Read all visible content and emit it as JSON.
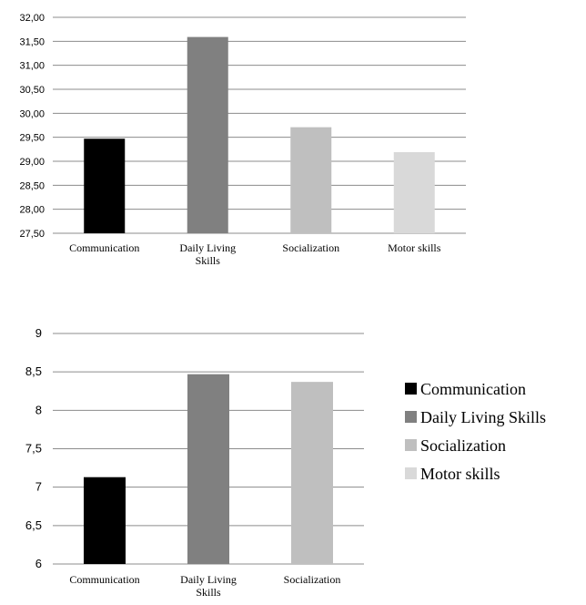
{
  "chart_data": [
    {
      "type": "bar",
      "categories": [
        "Communication",
        "Daily Living Skills",
        "Socialization",
        "Motor skills"
      ],
      "category_lines": [
        [
          "Communication"
        ],
        [
          "Daily Living",
          "Skills"
        ],
        [
          "Socialization"
        ],
        [
          "Motor skills"
        ]
      ],
      "values": [
        29.47,
        31.59,
        29.71,
        29.19
      ],
      "colors": [
        "#000000",
        "#808080",
        "#bfbfbf",
        "#d9d9d9"
      ],
      "ylim": [
        27.5,
        32.0
      ],
      "yticks": [
        "27,50",
        "28,00",
        "28,50",
        "29,00",
        "29,50",
        "30,00",
        "30,50",
        "31,00",
        "31,50",
        "32,00"
      ],
      "grid": true
    },
    {
      "type": "bar",
      "categories": [
        "Communication",
        "Daily Living Skills",
        "Socialization"
      ],
      "category_lines": [
        [
          "Communication"
        ],
        [
          "Daily Living",
          "Skills"
        ],
        [
          "Socialization"
        ]
      ],
      "values": [
        7.13,
        8.47,
        8.37
      ],
      "colors": [
        "#000000",
        "#808080",
        "#bfbfbf"
      ],
      "ylim": [
        6,
        9
      ],
      "yticks": [
        "6",
        "6,5",
        "7",
        "7,5",
        "8",
        "8,5",
        "9"
      ],
      "grid": true
    }
  ],
  "legend": {
    "placement": "right",
    "items": [
      {
        "label": "Communication",
        "color": "#000000"
      },
      {
        "label": "Daily Living Skills",
        "color": "#808080"
      },
      {
        "label": "Socialization",
        "color": "#bfbfbf"
      },
      {
        "label": "Motor skills",
        "color": "#d9d9d9"
      }
    ]
  }
}
